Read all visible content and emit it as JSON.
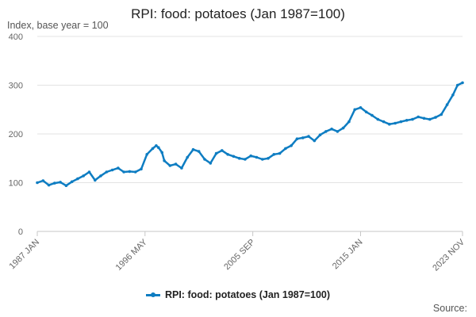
{
  "chart_data": {
    "type": "line",
    "title": "RPI: food: potatoes (Jan 1987=100)",
    "ylabel": "Index, base year = 100",
    "xlabel": "",
    "ylim": [
      0,
      400
    ],
    "yticks": [
      0,
      100,
      200,
      300,
      400
    ],
    "xlim": [
      1987.0,
      2023.833
    ],
    "xticks": [
      {
        "value": 1987.0,
        "label": "1987 JAN"
      },
      {
        "value": 1996.333,
        "label": "1996 MAY"
      },
      {
        "value": 2005.667,
        "label": "2005 SEP"
      },
      {
        "value": 2015.0,
        "label": "2015 JAN"
      },
      {
        "value": 2023.833,
        "label": "2023 NOV"
      }
    ],
    "grid": true,
    "legend_position": "bottom",
    "series": [
      {
        "name": "RPI: food: potatoes (Jan 1987=100)",
        "color": "#0e7dc2",
        "points": [
          [
            1987.0,
            100
          ],
          [
            1987.5,
            104
          ],
          [
            1988.0,
            95
          ],
          [
            1988.5,
            99
          ],
          [
            1989.0,
            101
          ],
          [
            1989.5,
            94
          ],
          [
            1990.0,
            102
          ],
          [
            1990.5,
            108
          ],
          [
            1991.0,
            114
          ],
          [
            1991.5,
            122
          ],
          [
            1992.0,
            105
          ],
          [
            1992.5,
            114
          ],
          [
            1993.0,
            122
          ],
          [
            1993.5,
            126
          ],
          [
            1994.0,
            130
          ],
          [
            1994.5,
            122
          ],
          [
            1995.0,
            123
          ],
          [
            1995.5,
            122
          ],
          [
            1996.0,
            128
          ],
          [
            1996.5,
            158
          ],
          [
            1997.0,
            170
          ],
          [
            1997.3,
            176
          ],
          [
            1997.5,
            172
          ],
          [
            1997.8,
            162
          ],
          [
            1998.0,
            145
          ],
          [
            1998.5,
            135
          ],
          [
            1999.0,
            138
          ],
          [
            1999.5,
            130
          ],
          [
            2000.0,
            152
          ],
          [
            2000.5,
            168
          ],
          [
            2001.0,
            164
          ],
          [
            2001.5,
            148
          ],
          [
            2002.0,
            140
          ],
          [
            2002.5,
            160
          ],
          [
            2003.0,
            166
          ],
          [
            2003.5,
            158
          ],
          [
            2004.0,
            154
          ],
          [
            2004.5,
            150
          ],
          [
            2005.0,
            148
          ],
          [
            2005.5,
            155
          ],
          [
            2006.0,
            152
          ],
          [
            2006.5,
            148
          ],
          [
            2007.0,
            150
          ],
          [
            2007.5,
            158
          ],
          [
            2008.0,
            160
          ],
          [
            2008.5,
            170
          ],
          [
            2009.0,
            176
          ],
          [
            2009.5,
            190
          ],
          [
            2010.0,
            192
          ],
          [
            2010.5,
            195
          ],
          [
            2011.0,
            186
          ],
          [
            2011.5,
            198
          ],
          [
            2012.0,
            205
          ],
          [
            2012.5,
            210
          ],
          [
            2013.0,
            205
          ],
          [
            2013.5,
            212
          ],
          [
            2014.0,
            225
          ],
          [
            2014.5,
            250
          ],
          [
            2015.0,
            254
          ],
          [
            2015.5,
            245
          ],
          [
            2016.0,
            238
          ],
          [
            2016.5,
            230
          ],
          [
            2017.0,
            225
          ],
          [
            2017.5,
            220
          ],
          [
            2018.0,
            222
          ],
          [
            2018.5,
            225
          ],
          [
            2019.0,
            228
          ],
          [
            2019.5,
            230
          ],
          [
            2020.0,
            235
          ],
          [
            2020.5,
            232
          ],
          [
            2021.0,
            230
          ],
          [
            2021.5,
            234
          ],
          [
            2022.0,
            240
          ],
          [
            2022.5,
            260
          ],
          [
            2023.0,
            280
          ],
          [
            2023.4,
            300
          ],
          [
            2023.833,
            305
          ]
        ]
      }
    ]
  },
  "legend": {
    "label": "RPI: food: potatoes (Jan 1987=100)"
  },
  "source": {
    "label": "Source:"
  }
}
